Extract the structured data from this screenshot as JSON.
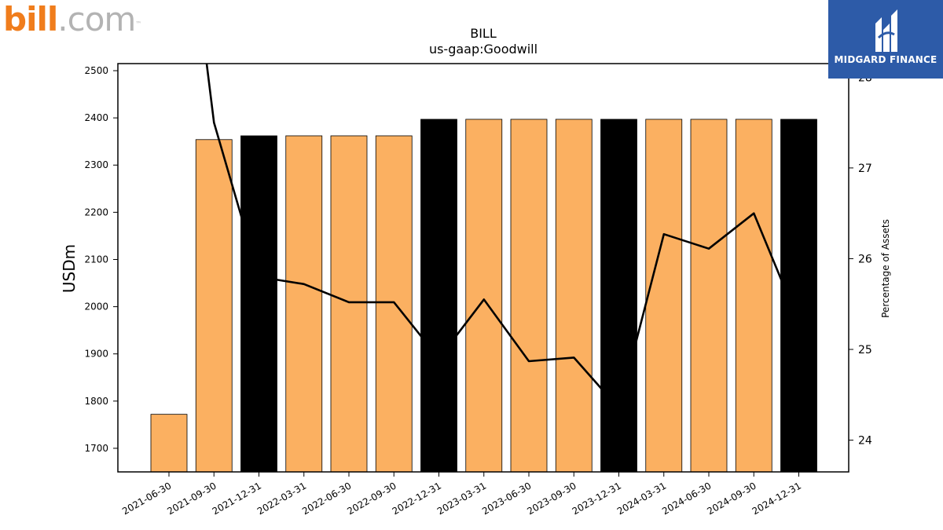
{
  "logos": {
    "left_brand_main": "bill",
    "left_brand_suffix": ".com",
    "left_brand_tm": "™",
    "right_brand": "MIDGARD FINANCE"
  },
  "colors": {
    "bar_fill": "#fbb061",
    "bar_year_end_fill": "#000000",
    "line": "#000000",
    "brand_orange": "#f07d1c",
    "midgard_blue": "#2d5ba8"
  },
  "chart_data": {
    "type": "bar",
    "title": "BILL",
    "subtitle": "us-gaap:Goodwill",
    "xlabel": "",
    "ylabel": "USDm",
    "y2label": "Percentage of Assets",
    "categories": [
      "2021-06-30",
      "2021-09-30",
      "2021-12-31",
      "2022-03-31",
      "2022-06-30",
      "2022-09-30",
      "2022-12-31",
      "2023-03-31",
      "2023-06-30",
      "2023-09-30",
      "2023-12-31",
      "2024-03-31",
      "2024-06-30",
      "2024-09-30",
      "2024-12-31"
    ],
    "series": [
      {
        "type": "bar",
        "values": [
          1772,
          2354,
          2362,
          2362,
          2362,
          2362,
          2397,
          2397,
          2397,
          2397,
          2397,
          2397,
          2397,
          2397,
          2397
        ],
        "highlight_year_end": true
      },
      {
        "type": "line",
        "axis": "right",
        "values": [
          31.5,
          27.5,
          25.8,
          25.72,
          25.52,
          25.52,
          24.9,
          25.55,
          24.87,
          24.91,
          24.35,
          26.27,
          26.11,
          26.5,
          25.3
        ]
      }
    ],
    "ylim": [
      1650,
      2515
    ],
    "y_ticks": [
      1700,
      1800,
      1900,
      2000,
      2100,
      2200,
      2300,
      2400,
      2500
    ],
    "y2lim": [
      23.65,
      28.15
    ],
    "y2_ticks": [
      24,
      25,
      26,
      27,
      28
    ],
    "grid": false,
    "legend": "none"
  }
}
